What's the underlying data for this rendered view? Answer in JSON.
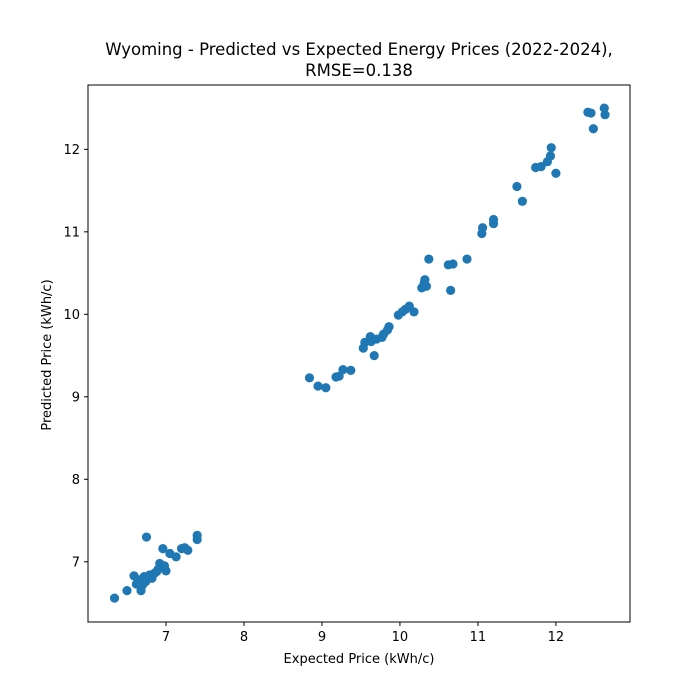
{
  "chart_data": {
    "type": "scatter",
    "title_lines": [
      "Wyoming - Predicted vs Expected Energy Prices (2022-2024),",
      "RMSE=0.138"
    ],
    "xlabel": "Expected Price (kWh/c)",
    "ylabel": "Predicted Price (kWh/c)",
    "xlim": [
      6.0,
      12.95
    ],
    "ylim": [
      6.27,
      12.78
    ],
    "xticks": [
      7,
      8,
      9,
      10,
      11,
      12
    ],
    "yticks": [
      7,
      8,
      9,
      10,
      11,
      12
    ],
    "grid": false,
    "point_color": "#1f77b4",
    "points": [
      [
        6.34,
        6.56
      ],
      [
        6.5,
        6.65
      ],
      [
        6.59,
        6.83
      ],
      [
        6.62,
        6.73
      ],
      [
        6.66,
        6.78
      ],
      [
        6.68,
        6.65
      ],
      [
        6.7,
        6.72
      ],
      [
        6.72,
        6.82
      ],
      [
        6.74,
        6.76
      ],
      [
        6.75,
        7.3
      ],
      [
        6.79,
        6.84
      ],
      [
        6.82,
        6.8
      ],
      [
        6.85,
        6.86
      ],
      [
        6.88,
        6.88
      ],
      [
        6.9,
        6.91
      ],
      [
        6.92,
        6.98
      ],
      [
        6.94,
        6.93
      ],
      [
        6.96,
        7.16
      ],
      [
        6.98,
        6.95
      ],
      [
        7.0,
        6.89
      ],
      [
        7.05,
        7.1
      ],
      [
        7.13,
        7.06
      ],
      [
        7.2,
        7.16
      ],
      [
        7.24,
        7.17
      ],
      [
        7.28,
        7.14
      ],
      [
        7.4,
        7.32
      ],
      [
        7.4,
        7.27
      ],
      [
        8.84,
        9.23
      ],
      [
        8.95,
        9.13
      ],
      [
        9.05,
        9.11
      ],
      [
        9.18,
        9.24
      ],
      [
        9.22,
        9.25
      ],
      [
        9.27,
        9.33
      ],
      [
        9.37,
        9.32
      ],
      [
        9.53,
        9.59
      ],
      [
        9.55,
        9.66
      ],
      [
        9.62,
        9.73
      ],
      [
        9.63,
        9.67
      ],
      [
        9.67,
        9.5
      ],
      [
        9.7,
        9.7
      ],
      [
        9.77,
        9.72
      ],
      [
        9.79,
        9.76
      ],
      [
        9.84,
        9.81
      ],
      [
        9.86,
        9.85
      ],
      [
        9.98,
        9.99
      ],
      [
        10.03,
        10.03
      ],
      [
        10.07,
        10.06
      ],
      [
        10.12,
        10.1
      ],
      [
        10.18,
        10.03
      ],
      [
        10.28,
        10.32
      ],
      [
        10.31,
        10.38
      ],
      [
        10.32,
        10.42
      ],
      [
        10.34,
        10.34
      ],
      [
        10.37,
        10.67
      ],
      [
        10.62,
        10.6
      ],
      [
        10.65,
        10.29
      ],
      [
        10.68,
        10.61
      ],
      [
        10.86,
        10.67
      ],
      [
        11.05,
        10.98
      ],
      [
        11.06,
        11.05
      ],
      [
        11.2,
        11.1
      ],
      [
        11.2,
        11.15
      ],
      [
        11.5,
        11.55
      ],
      [
        11.57,
        11.37
      ],
      [
        11.74,
        11.78
      ],
      [
        11.81,
        11.79
      ],
      [
        11.89,
        11.85
      ],
      [
        11.93,
        11.92
      ],
      [
        11.94,
        12.02
      ],
      [
        12.0,
        11.71
      ],
      [
        12.41,
        12.45
      ],
      [
        12.45,
        12.44
      ],
      [
        12.48,
        12.25
      ],
      [
        12.62,
        12.5
      ],
      [
        12.63,
        12.42
      ]
    ]
  }
}
